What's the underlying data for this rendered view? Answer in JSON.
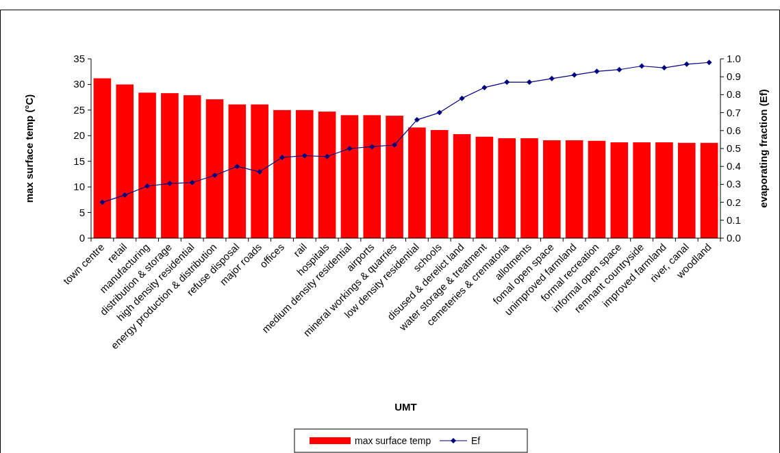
{
  "chart_data": {
    "type": "bar",
    "xlabel": "UMT",
    "ylabel": "max surface temp (°C)",
    "y2label": "evaporating fraction (Ef)",
    "categories": [
      "town centre",
      "retail",
      "manufacturing",
      "distribution & storage",
      "high density residential",
      "energy production & distribution",
      "refuse disposal",
      "major roads",
      "offices",
      "rail",
      "hospitals",
      "medium density residential",
      "airports",
      "mineral workings & quarries",
      "low density residential",
      "schools",
      "disused & derelict land",
      "water storage & treatment",
      "cemeteries & crematoria",
      "allotments",
      "fomal open space",
      "unimproved farmland",
      "formal recreation",
      "informal open space",
      "remnant countryside",
      "improved farmland",
      "river, canal",
      "woodland"
    ],
    "series": [
      {
        "name": "max surface temp",
        "color": "#ff0000",
        "values": [
          31.2,
          30.0,
          28.4,
          28.3,
          27.9,
          27.1,
          26.1,
          26.1,
          25.0,
          25.0,
          24.7,
          24.0,
          24.0,
          23.9,
          21.6,
          21.1,
          20.3,
          19.8,
          19.5,
          19.5,
          19.1,
          19.1,
          19.0,
          18.7,
          18.7,
          18.7,
          18.6,
          18.6
        ]
      },
      {
        "name": "Ef",
        "type": "line",
        "axis": "y2",
        "color": "#000080",
        "marker": "diamond",
        "values": [
          0.2,
          0.24,
          0.29,
          0.305,
          0.31,
          0.35,
          0.4,
          0.37,
          0.45,
          0.46,
          0.455,
          0.5,
          0.51,
          0.52,
          0.66,
          0.7,
          0.78,
          0.84,
          0.87,
          0.87,
          0.89,
          0.91,
          0.93,
          0.94,
          0.96,
          0.95,
          0.97,
          0.98
        ]
      }
    ],
    "ylim": [
      0,
      35
    ],
    "yticks": [
      0,
      5,
      10,
      15,
      20,
      25,
      30,
      35
    ],
    "y2lim": [
      0,
      1
    ],
    "y2ticks": [
      {
        "value": 0,
        "label": "0.0"
      },
      {
        "value": 0.1,
        "label": "0.1"
      },
      {
        "value": 0.2,
        "label": "0.2"
      },
      {
        "value": 0.3,
        "label": "0.3"
      },
      {
        "value": 0.4,
        "label": "0.4"
      },
      {
        "value": 0.5,
        "label": "0.5"
      },
      {
        "value": 0.6,
        "label": "0.6"
      },
      {
        "value": 0.7,
        "label": "0.7"
      },
      {
        "value": 0.8,
        "label": "0.8"
      },
      {
        "value": 0.9,
        "label": "0.9"
      },
      {
        "value": 1,
        "label": "1.0"
      }
    ],
    "grid": false,
    "legend": "bottom"
  }
}
